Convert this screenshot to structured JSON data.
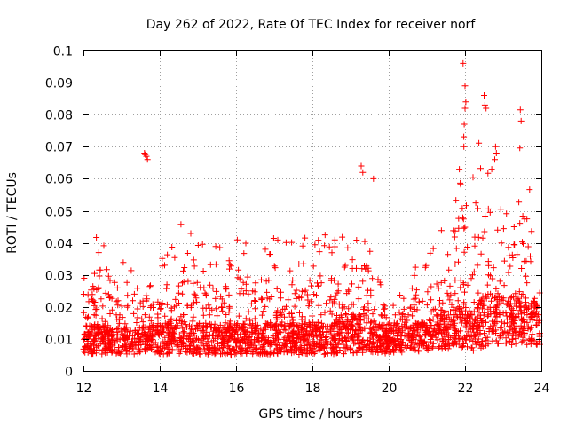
{
  "chart_data": {
    "type": "scatter",
    "title": "Day 262 of 2022, Rate Of TEC Index for receiver norf",
    "xlabel": "GPS time / hours",
    "ylabel": "ROTI / TECUs",
    "xlim": [
      12,
      24
    ],
    "ylim": [
      0,
      0.1
    ],
    "xticks": [
      12,
      14,
      16,
      18,
      20,
      22,
      24
    ],
    "yticks": [
      0,
      0.01,
      0.02,
      0.03,
      0.04,
      0.05,
      0.06,
      0.07,
      0.08,
      0.09,
      0.1
    ],
    "xtick_labels": [
      "12",
      "14",
      "16",
      "18",
      "20",
      "22",
      "24"
    ],
    "ytick_labels": [
      "0",
      "0.01",
      "0.02",
      "0.03",
      "0.04",
      "0.05",
      "0.06",
      "0.07",
      "0.08",
      "0.09",
      "0.1"
    ],
    "grid": true,
    "marker": "+",
    "color": "#ff0000",
    "series": [
      {
        "name": "ROTI",
        "envelope": [
          {
            "x": 12.0,
            "base": 0.01,
            "spread": 0.006,
            "peak": 0.035
          },
          {
            "x": 12.3,
            "base": 0.01,
            "spread": 0.007,
            "peak": 0.045
          },
          {
            "x": 12.8,
            "base": 0.009,
            "spread": 0.006,
            "peak": 0.033
          },
          {
            "x": 13.3,
            "base": 0.009,
            "spread": 0.006,
            "peak": 0.037
          },
          {
            "x": 13.7,
            "base": 0.01,
            "spread": 0.006,
            "peak": 0.033
          },
          {
            "x": 14.0,
            "base": 0.01,
            "spread": 0.007,
            "peak": 0.035
          },
          {
            "x": 14.4,
            "base": 0.011,
            "spread": 0.008,
            "peak": 0.048
          },
          {
            "x": 14.8,
            "base": 0.01,
            "spread": 0.007,
            "peak": 0.044
          },
          {
            "x": 15.3,
            "base": 0.01,
            "spread": 0.007,
            "peak": 0.04
          },
          {
            "x": 15.8,
            "base": 0.01,
            "spread": 0.007,
            "peak": 0.04
          },
          {
            "x": 16.2,
            "base": 0.01,
            "spread": 0.007,
            "peak": 0.042
          },
          {
            "x": 16.7,
            "base": 0.01,
            "spread": 0.007,
            "peak": 0.044
          },
          {
            "x": 17.2,
            "base": 0.01,
            "spread": 0.007,
            "peak": 0.042
          },
          {
            "x": 17.7,
            "base": 0.01,
            "spread": 0.007,
            "peak": 0.041
          },
          {
            "x": 18.0,
            "base": 0.01,
            "spread": 0.007,
            "peak": 0.047
          },
          {
            "x": 18.5,
            "base": 0.01,
            "spread": 0.007,
            "peak": 0.043
          },
          {
            "x": 19.0,
            "base": 0.011,
            "spread": 0.008,
            "peak": 0.042
          },
          {
            "x": 19.3,
            "base": 0.012,
            "spread": 0.009,
            "peak": 0.064
          },
          {
            "x": 19.6,
            "base": 0.011,
            "spread": 0.008,
            "peak": 0.06
          },
          {
            "x": 20.0,
            "base": 0.009,
            "spread": 0.005,
            "peak": 0.022
          },
          {
            "x": 20.5,
            "base": 0.01,
            "spread": 0.006,
            "peak": 0.03
          },
          {
            "x": 21.0,
            "base": 0.011,
            "spread": 0.007,
            "peak": 0.038
          },
          {
            "x": 21.3,
            "base": 0.012,
            "spread": 0.008,
            "peak": 0.046
          },
          {
            "x": 21.6,
            "base": 0.013,
            "spread": 0.009,
            "peak": 0.048
          },
          {
            "x": 21.9,
            "base": 0.014,
            "spread": 0.01,
            "peak": 0.064
          },
          {
            "x": 22.0,
            "base": 0.014,
            "spread": 0.01,
            "peak": 0.096
          },
          {
            "x": 22.2,
            "base": 0.012,
            "spread": 0.009,
            "peak": 0.06
          },
          {
            "x": 22.5,
            "base": 0.016,
            "spread": 0.012,
            "peak": 0.086
          },
          {
            "x": 22.8,
            "base": 0.017,
            "spread": 0.012,
            "peak": 0.07
          },
          {
            "x": 23.2,
            "base": 0.015,
            "spread": 0.01,
            "peak": 0.052
          },
          {
            "x": 23.5,
            "base": 0.016,
            "spread": 0.011,
            "peak": 0.082
          },
          {
            "x": 23.8,
            "base": 0.015,
            "spread": 0.01,
            "peak": 0.045
          },
          {
            "x": 24.0,
            "base": 0.013,
            "spread": 0.009,
            "peak": 0.031
          }
        ],
        "outliers": [
          {
            "x": 13.6,
            "y": 0.068
          },
          {
            "x": 13.62,
            "y": 0.0675
          },
          {
            "x": 13.65,
            "y": 0.067
          },
          {
            "x": 13.68,
            "y": 0.066
          },
          {
            "x": 19.28,
            "y": 0.064
          },
          {
            "x": 19.32,
            "y": 0.062
          },
          {
            "x": 19.6,
            "y": 0.06
          },
          {
            "x": 21.95,
            "y": 0.096
          },
          {
            "x": 22.0,
            "y": 0.089
          },
          {
            "x": 22.02,
            "y": 0.084
          },
          {
            "x": 22.0,
            "y": 0.082
          },
          {
            "x": 21.98,
            "y": 0.077
          },
          {
            "x": 21.97,
            "y": 0.07
          },
          {
            "x": 22.5,
            "y": 0.086
          },
          {
            "x": 22.52,
            "y": 0.083
          },
          {
            "x": 22.55,
            "y": 0.082
          },
          {
            "x": 22.8,
            "y": 0.07
          },
          {
            "x": 22.82,
            "y": 0.068
          },
          {
            "x": 22.78,
            "y": 0.066
          },
          {
            "x": 23.45,
            "y": 0.0815
          },
          {
            "x": 23.47,
            "y": 0.078
          },
          {
            "x": 21.85,
            "y": 0.063
          },
          {
            "x": 22.7,
            "y": 0.063
          }
        ]
      }
    ]
  }
}
